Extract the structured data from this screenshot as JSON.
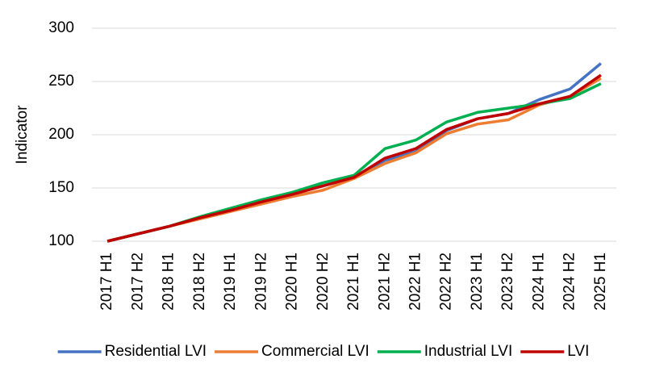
{
  "chart_data": {
    "type": "line",
    "y_label": "Indicator",
    "categories": [
      "2017 H1",
      "2017 H2",
      "2018 H1",
      "2018 H2",
      "2019 H1",
      "2019 H2",
      "2020 H1",
      "2020 H2",
      "2021 H1",
      "2021 H2",
      "2022 H1",
      "2022 H2",
      "2023 H1",
      "2023 H2",
      "2024 H1",
      "2024 H2",
      "2025 H1"
    ],
    "series": [
      {
        "name": "Residential LVI",
        "color": "#4472c4",
        "values": [
          100,
          107,
          114,
          122,
          130,
          138,
          145,
          152,
          160,
          176,
          184,
          204,
          215,
          220,
          233,
          243,
          267
        ]
      },
      {
        "name": "Commercial LVI",
        "color": "#ed7d31",
        "values": [
          100,
          107,
          114,
          121,
          128,
          135,
          142,
          148,
          159,
          173,
          183,
          201,
          210,
          214,
          228,
          236,
          253
        ]
      },
      {
        "name": "Industrial LVI",
        "color": "#00b050",
        "values": [
          100,
          107,
          114,
          123,
          131,
          139,
          146,
          155,
          162,
          187,
          195,
          212,
          221,
          225,
          229,
          234,
          248
        ]
      },
      {
        "name": "LVI",
        "color": "#c00000",
        "values": [
          100,
          107,
          114,
          122,
          129,
          137,
          144,
          152,
          160,
          178,
          187,
          205,
          215,
          220,
          229,
          236,
          256
        ]
      }
    ],
    "ylim": [
      100,
      300
    ],
    "yticks": [
      100,
      150,
      200,
      250,
      300
    ],
    "grid": true,
    "legend": "bottom"
  }
}
